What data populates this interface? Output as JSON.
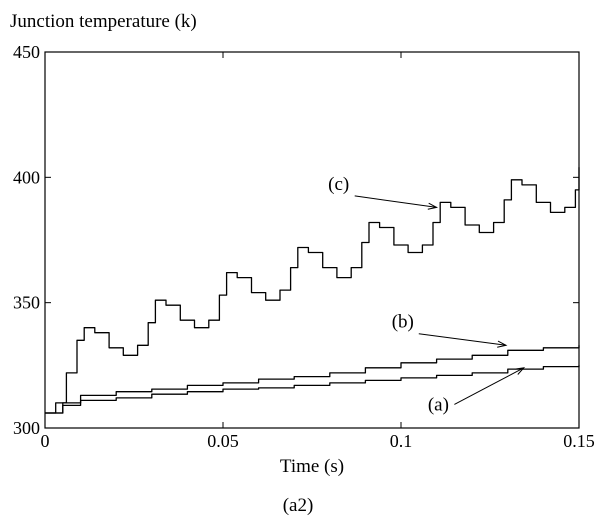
{
  "chart_data": {
    "type": "line",
    "ylabel": "Junction temperature (k)",
    "xlabel": "Time (s)",
    "caption": "(a2)",
    "xlim": [
      0,
      0.15
    ],
    "ylim": [
      300,
      450
    ],
    "xticks": [
      0,
      0.05,
      0.1,
      0.15
    ],
    "xtick_labels": [
      "0",
      "0.05",
      "0.1",
      "0.15"
    ],
    "yticks": [
      300,
      350,
      400,
      450
    ],
    "ytick_labels": [
      "300",
      "350",
      "400",
      "450"
    ],
    "grid": false,
    "legend": "none",
    "series": [
      {
        "name": "(a)",
        "x": [
          0,
          0.005,
          0.01,
          0.02,
          0.03,
          0.04,
          0.05,
          0.06,
          0.07,
          0.08,
          0.09,
          0.1,
          0.11,
          0.12,
          0.13,
          0.14,
          0.15
        ],
        "y": [
          306,
          309,
          311,
          312,
          313.5,
          314.5,
          315.5,
          316,
          317,
          318,
          319,
          320,
          321,
          322,
          323.5,
          324.5,
          325
        ]
      },
      {
        "name": "(b)",
        "x": [
          0,
          0.005,
          0.01,
          0.02,
          0.03,
          0.04,
          0.05,
          0.06,
          0.07,
          0.08,
          0.09,
          0.1,
          0.11,
          0.12,
          0.13,
          0.14,
          0.15
        ],
        "y": [
          306,
          310,
          313,
          314.5,
          315.5,
          317,
          318,
          319.5,
          320.5,
          322,
          324,
          326,
          327.5,
          329,
          331,
          332,
          333
        ]
      },
      {
        "name": "(c)",
        "x": [
          0,
          0.003,
          0.006,
          0.009,
          0.011,
          0.014,
          0.018,
          0.022,
          0.026,
          0.029,
          0.031,
          0.034,
          0.038,
          0.042,
          0.046,
          0.049,
          0.051,
          0.054,
          0.058,
          0.062,
          0.066,
          0.069,
          0.071,
          0.074,
          0.078,
          0.082,
          0.086,
          0.089,
          0.091,
          0.094,
          0.098,
          0.102,
          0.106,
          0.109,
          0.111,
          0.114,
          0.118,
          0.122,
          0.126,
          0.129,
          0.131,
          0.134,
          0.138,
          0.142,
          0.146,
          0.149,
          0.15
        ],
        "y": [
          306,
          310,
          322,
          335,
          340,
          338,
          332,
          329,
          333,
          342,
          351,
          349,
          343,
          340,
          343,
          353,
          362,
          360,
          354,
          351,
          355,
          364,
          372,
          370,
          364,
          360,
          364,
          374,
          382,
          380,
          373,
          370,
          373,
          382,
          390,
          388,
          381,
          378,
          382,
          391,
          399,
          397,
          390,
          386,
          388,
          395,
          404
        ]
      }
    ],
    "annotations": [
      {
        "label": "(c)",
        "text_x": 0.0825,
        "text_y": 395,
        "arrow_x": 0.11,
        "arrow_y": 388
      },
      {
        "label": "(b)",
        "text_x": 0.1005,
        "text_y": 340,
        "arrow_x": 0.1295,
        "arrow_y": 333
      },
      {
        "label": "(a)",
        "text_x": 0.1105,
        "text_y": 307,
        "arrow_x": 0.1345,
        "arrow_y": 324
      }
    ]
  }
}
